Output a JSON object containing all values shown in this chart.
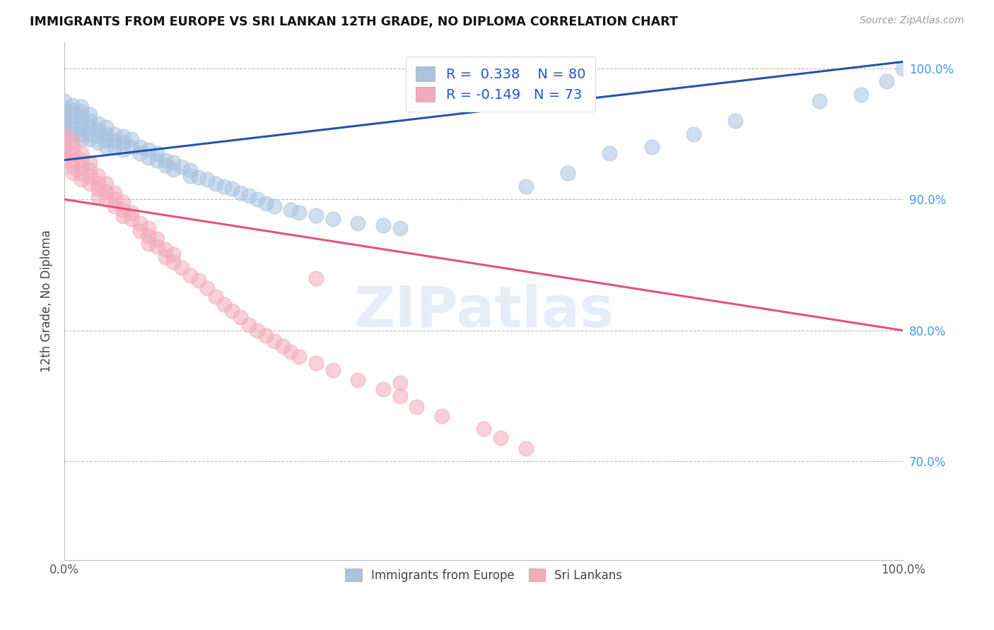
{
  "title": "IMMIGRANTS FROM EUROPE VS SRI LANKAN 12TH GRADE, NO DIPLOMA CORRELATION CHART",
  "source": "Source: ZipAtlas.com",
  "ylabel": "12th Grade, No Diploma",
  "watermark": "ZIPatlas",
  "legend_v1": "0.338",
  "legend_n1": "80",
  "legend_v2": "-0.149",
  "legend_n2": "73",
  "blue_color": "#A8C4E0",
  "pink_color": "#F4AABB",
  "blue_line_color": "#2255AA",
  "pink_line_color": "#E05575",
  "blue_scatter_x": [
    0.0,
    0.0,
    0.0,
    0.0,
    0.0,
    0.0,
    0.01,
    0.01,
    0.01,
    0.01,
    0.01,
    0.01,
    0.02,
    0.02,
    0.02,
    0.02,
    0.02,
    0.02,
    0.02,
    0.03,
    0.03,
    0.03,
    0.03,
    0.03,
    0.04,
    0.04,
    0.04,
    0.04,
    0.05,
    0.05,
    0.05,
    0.05,
    0.06,
    0.06,
    0.06,
    0.07,
    0.07,
    0.07,
    0.08,
    0.08,
    0.09,
    0.09,
    0.1,
    0.1,
    0.11,
    0.11,
    0.12,
    0.12,
    0.13,
    0.13,
    0.14,
    0.15,
    0.15,
    0.16,
    0.17,
    0.18,
    0.19,
    0.2,
    0.21,
    0.22,
    0.23,
    0.24,
    0.25,
    0.27,
    0.28,
    0.3,
    0.32,
    0.35,
    0.38,
    0.4,
    0.55,
    0.6,
    0.65,
    0.7,
    0.75,
    0.8,
    0.9,
    0.95,
    0.98,
    1.0
  ],
  "blue_scatter_y": [
    0.975,
    0.97,
    0.968,
    0.965,
    0.96,
    0.955,
    0.972,
    0.968,
    0.964,
    0.958,
    0.954,
    0.95,
    0.971,
    0.967,
    0.963,
    0.958,
    0.954,
    0.95,
    0.946,
    0.965,
    0.96,
    0.955,
    0.95,
    0.946,
    0.958,
    0.953,
    0.948,
    0.943,
    0.955,
    0.95,
    0.945,
    0.94,
    0.95,
    0.945,
    0.94,
    0.948,
    0.943,
    0.938,
    0.946,
    0.94,
    0.94,
    0.935,
    0.938,
    0.932,
    0.935,
    0.93,
    0.93,
    0.926,
    0.928,
    0.923,
    0.925,
    0.922,
    0.918,
    0.917,
    0.915,
    0.912,
    0.91,
    0.908,
    0.905,
    0.903,
    0.9,
    0.897,
    0.895,
    0.892,
    0.89,
    0.888,
    0.885,
    0.882,
    0.88,
    0.878,
    0.91,
    0.92,
    0.935,
    0.94,
    0.95,
    0.96,
    0.975,
    0.98,
    0.99,
    1.0
  ],
  "pink_scatter_x": [
    0.0,
    0.0,
    0.0,
    0.0,
    0.0,
    0.01,
    0.01,
    0.01,
    0.01,
    0.01,
    0.01,
    0.02,
    0.02,
    0.02,
    0.02,
    0.02,
    0.03,
    0.03,
    0.03,
    0.03,
    0.04,
    0.04,
    0.04,
    0.04,
    0.05,
    0.05,
    0.05,
    0.06,
    0.06,
    0.06,
    0.07,
    0.07,
    0.07,
    0.08,
    0.08,
    0.09,
    0.09,
    0.1,
    0.1,
    0.1,
    0.11,
    0.11,
    0.12,
    0.12,
    0.13,
    0.13,
    0.14,
    0.15,
    0.16,
    0.17,
    0.18,
    0.19,
    0.2,
    0.21,
    0.22,
    0.23,
    0.24,
    0.25,
    0.26,
    0.27,
    0.28,
    0.3,
    0.32,
    0.35,
    0.38,
    0.4,
    0.42,
    0.45,
    0.5,
    0.52,
    0.55,
    0.4,
    0.3
  ],
  "pink_scatter_y": [
    0.95,
    0.945,
    0.94,
    0.935,
    0.93,
    0.945,
    0.94,
    0.935,
    0.93,
    0.925,
    0.92,
    0.935,
    0.93,
    0.925,
    0.92,
    0.915,
    0.928,
    0.922,
    0.918,
    0.912,
    0.918,
    0.912,
    0.908,
    0.902,
    0.912,
    0.906,
    0.9,
    0.905,
    0.9,
    0.895,
    0.898,
    0.892,
    0.887,
    0.89,
    0.885,
    0.882,
    0.876,
    0.878,
    0.872,
    0.866,
    0.87,
    0.864,
    0.862,
    0.856,
    0.858,
    0.852,
    0.848,
    0.842,
    0.838,
    0.832,
    0.826,
    0.82,
    0.815,
    0.81,
    0.804,
    0.8,
    0.796,
    0.792,
    0.788,
    0.784,
    0.78,
    0.775,
    0.77,
    0.762,
    0.755,
    0.75,
    0.742,
    0.735,
    0.725,
    0.718,
    0.71,
    0.76,
    0.84
  ],
  "xmin": 0.0,
  "xmax": 1.0,
  "ymin": 0.625,
  "ymax": 1.02,
  "ytick_vals": [
    0.7,
    0.8,
    0.9,
    1.0
  ],
  "ytick_labels": [
    "70.0%",
    "80.0%",
    "90.0%",
    "100.0%"
  ],
  "blue_trend_x": [
    0.0,
    1.0
  ],
  "blue_trend_y": [
    0.93,
    1.005
  ],
  "pink_trend_x": [
    0.0,
    1.0
  ],
  "pink_trend_y": [
    0.9,
    0.8
  ]
}
